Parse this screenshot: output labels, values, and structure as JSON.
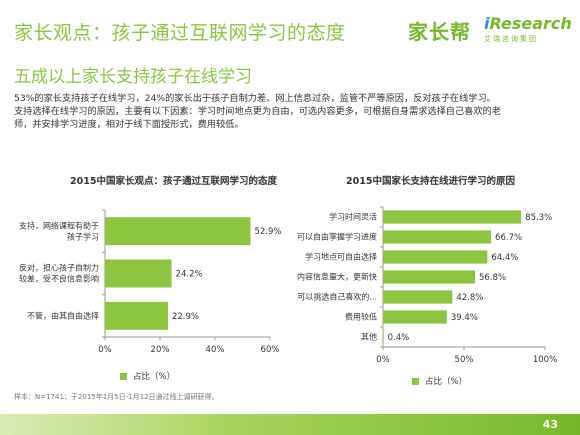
{
  "header": {
    "title": "家长观点：孩子通过互联网学习的态度",
    "subtitle": "五成以上家长支持孩子在线学习",
    "logo_text": "家长帮",
    "brand_i": "i",
    "brand_rest": "Research",
    "brand_sub": "艾瑞咨询集团"
  },
  "description": {
    "lines": [
      "53%的家长支持孩子在线学习，24%的家长出于孩子自制力差、网上信息过杂，监管不严等原因，反对孩子在线学习。",
      "支持选择在线学习的原因，主要有以下因素：学习时间地点更为自由，可选内容更多，可根据自身需求选择自己喜欢的老",
      "师，并安排学习进度，相对于线下面授形式，费用较低。"
    ]
  },
  "colors": {
    "accent": "#8cc63f",
    "bar": "#8cc63f",
    "axis": "#999999"
  },
  "legend_label": "占比（%）",
  "source": "样本：N=1741；于2015年1月5日-1月12日通过线上调研获得。",
  "page_number": "43",
  "chart_data": [
    {
      "type": "bar",
      "orientation": "horizontal",
      "title": "2015中国家长观点：孩子通过互联网学习的态度",
      "categories": [
        [
          "支持，网络课程有助于",
          "孩子学习"
        ],
        [
          "反对，担心孩子自制力",
          "较差，受不良信息影响"
        ],
        [
          "不管，由其自由选择"
        ]
      ],
      "values": [
        52.9,
        24.2,
        22.9
      ],
      "value_labels": [
        "52.9%",
        "24.2%",
        "22.9%"
      ],
      "xlim": [
        0,
        60
      ],
      "ticks": [
        0,
        20,
        40,
        60
      ],
      "tick_labels": [
        "0%",
        "20%",
        "40%",
        "60%"
      ],
      "legend": "占比（%）",
      "grid": false
    },
    {
      "type": "bar",
      "orientation": "horizontal",
      "title": "2015中国家长支持在线进行学习的原因",
      "categories": [
        [
          "学习时间灵活"
        ],
        [
          "可以自由掌握学习进度"
        ],
        [
          "学习地点可自由选择"
        ],
        [
          "内容信息量大，更新快"
        ],
        [
          "可以挑选自己喜欢的..."
        ],
        [
          "费用较低"
        ],
        [
          "其他"
        ]
      ],
      "values": [
        85.3,
        66.7,
        64.4,
        56.8,
        42.8,
        39.4,
        0.4
      ],
      "value_labels": [
        "85.3%",
        "66.7%",
        "64.4%",
        "56.8%",
        "42.8%",
        "39.4%",
        "0.4%"
      ],
      "xlim": [
        0,
        100
      ],
      "ticks": [
        0,
        50,
        100
      ],
      "tick_labels": [
        "0%",
        "50%",
        "100%"
      ],
      "legend": "占比（%）",
      "grid": false
    }
  ]
}
